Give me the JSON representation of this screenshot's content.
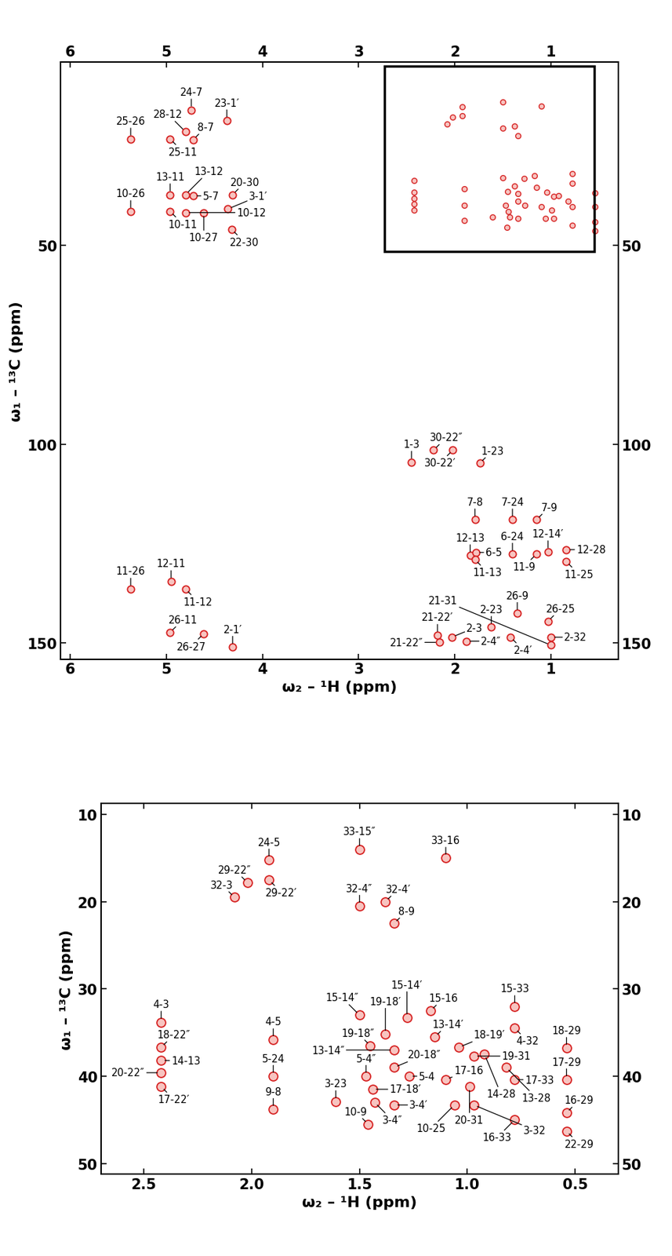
{
  "chart_data": [
    {
      "type": "scatter",
      "x_label": "ω₂ – ¹H (ppm)",
      "y_label": "ω₁ – ¹³C (ppm)",
      "xlim": [
        6.1,
        0.3
      ],
      "ylim": [
        154,
        4
      ],
      "xticks": [
        6,
        5,
        4,
        3,
        2,
        1
      ],
      "yticks": [
        50,
        100,
        150
      ],
      "color": "#d62020",
      "marker": "o",
      "inset_box": {
        "x": [
          2.73,
          0.55
        ],
        "y": [
          5,
          51.5
        ]
      },
      "points": [
        {
          "label": "24-7",
          "x": 4.74,
          "y": 16.0
        },
        {
          "label": "23-1′",
          "x": 4.37,
          "y": 18.7
        },
        {
          "label": "28-12",
          "x": 4.8,
          "y": 21.5
        },
        {
          "label": "25-11",
          "x": 4.96,
          "y": 23.3
        },
        {
          "label": "25-26",
          "x": 5.37,
          "y": 23.3
        },
        {
          "label": "8-7",
          "x": 4.72,
          "y": 23.5
        },
        {
          "label": "13-11",
          "x": 4.96,
          "y": 37.3
        },
        {
          "label": "13-12",
          "x": 4.8,
          "y": 37.3
        },
        {
          "label": "5-7",
          "x": 4.72,
          "y": 37.6
        },
        {
          "label": "20-30",
          "x": 4.31,
          "y": 37.3
        },
        {
          "label": "10-26",
          "x": 5.37,
          "y": 41.5
        },
        {
          "label": "10-11",
          "x": 4.96,
          "y": 41.5
        },
        {
          "label": "10-12",
          "x": 4.8,
          "y": 41.8
        },
        {
          "label": "10-27",
          "x": 4.61,
          "y": 41.8
        },
        {
          "label": "3-1′",
          "x": 4.36,
          "y": 40.9
        },
        {
          "label": "22-30",
          "x": 4.32,
          "y": 46.0
        },
        {
          "label": "11-26",
          "x": 5.37,
          "y": 136.4
        },
        {
          "label": "12-11",
          "x": 4.95,
          "y": 134.5
        },
        {
          "label": "11-12",
          "x": 4.8,
          "y": 136.4
        },
        {
          "label": "26-11",
          "x": 4.96,
          "y": 147.3
        },
        {
          "label": "26-27",
          "x": 4.61,
          "y": 147.6
        },
        {
          "label": "2-1′",
          "x": 4.31,
          "y": 151.0
        },
        {
          "label": "1-3",
          "x": 2.45,
          "y": 104.5
        },
        {
          "label": "30-22″",
          "x": 2.22,
          "y": 101.5
        },
        {
          "label": "30-22′",
          "x": 2.02,
          "y": 101.5
        },
        {
          "label": "1-23",
          "x": 1.74,
          "y": 104.8
        },
        {
          "label": "7-8",
          "x": 1.79,
          "y": 119.0
        },
        {
          "label": "7-24",
          "x": 1.4,
          "y": 119.0
        },
        {
          "label": "7-9",
          "x": 1.15,
          "y": 119.0
        },
        {
          "label": "12-13",
          "x": 1.84,
          "y": 128.0
        },
        {
          "label": "6-5",
          "x": 1.78,
          "y": 127.2
        },
        {
          "label": "11-13",
          "x": 1.79,
          "y": 129.0
        },
        {
          "label": "6-24",
          "x": 1.4,
          "y": 127.6
        },
        {
          "label": "11-9",
          "x": 1.15,
          "y": 127.6
        },
        {
          "label": "12-14′",
          "x": 1.03,
          "y": 127.0
        },
        {
          "label": "12-28",
          "x": 0.84,
          "y": 126.5
        },
        {
          "label": "11-25",
          "x": 0.84,
          "y": 129.5
        },
        {
          "label": "26-9",
          "x": 1.35,
          "y": 142.5
        },
        {
          "label": "26-25",
          "x": 1.03,
          "y": 144.5
        },
        {
          "label": "2-23",
          "x": 1.62,
          "y": 146.0
        },
        {
          "label": "21-22′",
          "x": 2.18,
          "y": 148.0
        },
        {
          "label": "21-22″",
          "x": 2.16,
          "y": 149.8
        },
        {
          "label": "2-3",
          "x": 2.03,
          "y": 148.5
        },
        {
          "label": "2-4″",
          "x": 1.88,
          "y": 149.5
        },
        {
          "label": "2-4′",
          "x": 1.42,
          "y": 148.5
        },
        {
          "label": "2-32",
          "x": 1.0,
          "y": 148.5
        },
        {
          "label": "21-31",
          "x": 1.0,
          "y": 150.5
        }
      ]
    },
    {
      "type": "scatter",
      "x_label": "ω₂ – ¹H (ppm)",
      "y_label": "ω₁ – ¹³C (ppm)",
      "xlim": [
        2.7,
        0.3
      ],
      "ylim": [
        51.25,
        8.75
      ],
      "xticks": [
        2.5,
        {
          "value": 2,
          "label": "2.0"
        },
        1.5,
        {
          "value": 1,
          "label": "1.0"
        },
        0.5
      ],
      "yticks": [
        10,
        20,
        30,
        40,
        50
      ],
      "color": "#d62020",
      "marker": "o",
      "points": [
        {
          "label": "24-5",
          "x": 1.92,
          "y": 15.2
        },
        {
          "label": "29-22′",
          "x": 1.92,
          "y": 17.5
        },
        {
          "label": "29-22″",
          "x": 2.02,
          "y": 17.8
        },
        {
          "label": "32-3",
          "x": 2.08,
          "y": 19.5
        },
        {
          "label": "33-15″",
          "x": 1.5,
          "y": 14.0
        },
        {
          "label": "33-16",
          "x": 1.1,
          "y": 15.0
        },
        {
          "label": "32-4″",
          "x": 1.5,
          "y": 20.5
        },
        {
          "label": "32-4′",
          "x": 1.38,
          "y": 20.0
        },
        {
          "label": "8-9",
          "x": 1.34,
          "y": 22.5
        },
        {
          "label": "4-3",
          "x": 2.42,
          "y": 33.8
        },
        {
          "label": "18-22″",
          "x": 2.42,
          "y": 36.7
        },
        {
          "label": "14-13",
          "x": 2.42,
          "y": 38.2
        },
        {
          "label": "20-22″",
          "x": 2.42,
          "y": 39.6
        },
        {
          "label": "17-22′",
          "x": 2.42,
          "y": 41.2
        },
        {
          "label": "4-5",
          "x": 1.9,
          "y": 35.8
        },
        {
          "label": "5-24",
          "x": 1.9,
          "y": 40.0
        },
        {
          "label": "9-8",
          "x": 1.9,
          "y": 43.8
        },
        {
          "label": "3-23",
          "x": 1.61,
          "y": 42.9
        },
        {
          "label": "5-4″",
          "x": 1.47,
          "y": 40.0
        },
        {
          "label": "17-18′",
          "x": 1.44,
          "y": 41.5
        },
        {
          "label": "3-4″",
          "x": 1.43,
          "y": 43.0
        },
        {
          "label": "3-4′",
          "x": 1.34,
          "y": 43.3
        },
        {
          "label": "20-18″",
          "x": 1.34,
          "y": 39.0
        },
        {
          "label": "19-18″",
          "x": 1.45,
          "y": 36.5
        },
        {
          "label": "19-18′",
          "x": 1.38,
          "y": 35.2
        },
        {
          "label": "15-14″",
          "x": 1.5,
          "y": 33.0
        },
        {
          "label": "15-14′",
          "x": 1.28,
          "y": 33.3
        },
        {
          "label": "15-16",
          "x": 1.17,
          "y": 32.5
        },
        {
          "label": "13-14″",
          "x": 1.34,
          "y": 37.0
        },
        {
          "label": "13-14′",
          "x": 1.15,
          "y": 35.5
        },
        {
          "label": "5-4",
          "x": 1.27,
          "y": 40.0
        },
        {
          "label": "17-16",
          "x": 1.1,
          "y": 40.4
        },
        {
          "label": "10-9",
          "x": 1.46,
          "y": 45.5
        },
        {
          "label": "18-19′",
          "x": 1.04,
          "y": 36.7
        },
        {
          "label": "19-31",
          "x": 0.97,
          "y": 37.7
        },
        {
          "label": "15-33",
          "x": 0.78,
          "y": 32.0
        },
        {
          "label": "4-32",
          "x": 0.78,
          "y": 34.5
        },
        {
          "label": "14-28",
          "x": 0.92,
          "y": 37.5
        },
        {
          "label": "13-28",
          "x": 0.82,
          "y": 39.0
        },
        {
          "label": "20-31",
          "x": 0.99,
          "y": 41.2
        },
        {
          "label": "17-33",
          "x": 0.78,
          "y": 40.4
        },
        {
          "label": "10-25",
          "x": 1.06,
          "y": 43.3
        },
        {
          "label": "3-32",
          "x": 0.97,
          "y": 43.3
        },
        {
          "label": "16-33",
          "x": 0.78,
          "y": 45.0
        },
        {
          "label": "18-29",
          "x": 0.54,
          "y": 36.8
        },
        {
          "label": "17-29",
          "x": 0.54,
          "y": 40.4
        },
        {
          "label": "16-29",
          "x": 0.54,
          "y": 44.2
        },
        {
          "label": "22-29",
          "x": 0.54,
          "y": 46.3
        }
      ]
    }
  ]
}
